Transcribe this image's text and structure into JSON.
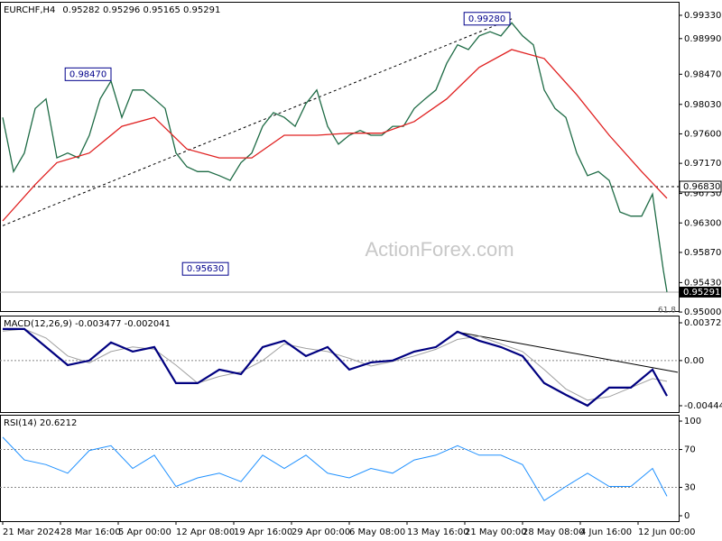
{
  "watermark": "ActionForex.com",
  "chart_data": [
    {
      "type": "line",
      "title": "EURCHF,H4",
      "subtitle": "0.95282 0.95296 0.95165 0.95291",
      "xlim": [
        -1.5,
        374.5
      ],
      "ylim": [
        0.95014,
        0.99527
      ],
      "yticks": [
        {
          "value": 0.9933,
          "label": "0.99330"
        },
        {
          "value": 0.9899,
          "label": "0.98990"
        },
        {
          "value": 0.9847,
          "label": "0.98470"
        },
        {
          "value": 0.9803,
          "label": "0.98030"
        },
        {
          "value": 0.976,
          "label": "0.97600"
        },
        {
          "value": 0.9717,
          "label": "0.97170"
        },
        {
          "value": 0.9673,
          "label": "0.96730"
        },
        {
          "value": 0.963,
          "label": "0.96300"
        },
        {
          "value": 0.9587,
          "label": "0.95870"
        },
        {
          "value": 0.9543,
          "label": "0.95430"
        },
        {
          "value": 0.95,
          "label": "0.95000"
        }
      ],
      "x": [
        0,
        6,
        12,
        18,
        24,
        30,
        36,
        42,
        48,
        54,
        60,
        66,
        72,
        78,
        84,
        90,
        96,
        102,
        108,
        114,
        120,
        126,
        132,
        138,
        144,
        150,
        156,
        162,
        168,
        174,
        180,
        186,
        192,
        198,
        204,
        210,
        216,
        222,
        228,
        234,
        240,
        246,
        252,
        258,
        264,
        270,
        276,
        282,
        288,
        294,
        300,
        306,
        312,
        318,
        324,
        330,
        336,
        342,
        348,
        354,
        360,
        366,
        368
      ],
      "series": [
        {
          "color": "#1e6b45",
          "width": 1.3,
          "values": [
            0.9784,
            0.9705,
            0.9732,
            0.9797,
            0.9811,
            0.9725,
            0.9732,
            0.9725,
            0.9758,
            0.9811,
            0.9837,
            0.9784,
            0.9824,
            0.9824,
            0.9811,
            0.9797,
            0.9732,
            0.9712,
            0.9705,
            0.9705,
            0.9699,
            0.9692,
            0.9718,
            0.9732,
            0.9771,
            0.9791,
            0.9784,
            0.9771,
            0.9804,
            0.9824,
            0.9771,
            0.9745,
            0.9758,
            0.9765,
            0.9758,
            0.9758,
            0.9771,
            0.9771,
            0.9797,
            0.9811,
            0.9824,
            0.9863,
            0.989,
            0.9883,
            0.9903,
            0.9909,
            0.9903,
            0.9922,
            0.9903,
            0.989,
            0.9824,
            0.9797,
            0.9784,
            0.9732,
            0.9699,
            0.9705,
            0.9692,
            0.9646,
            0.964,
            0.964,
            0.9672,
            0.9561,
            0.95291
          ]
        },
        {
          "color": "#e02020",
          "width": 1.3,
          "x": [
            0,
            18,
            30,
            48,
            66,
            84,
            102,
            120,
            138,
            156,
            174,
            192,
            210,
            228,
            246,
            264,
            282,
            300,
            318,
            336,
            354,
            368
          ],
          "values": [
            0.9633,
            0.9686,
            0.9718,
            0.9732,
            0.9771,
            0.9784,
            0.9738,
            0.9725,
            0.9725,
            0.9758,
            0.9758,
            0.9761,
            0.9761,
            0.9778,
            0.9811,
            0.9857,
            0.9883,
            0.987,
            0.9817,
            0.9758,
            0.9705,
            0.9666
          ]
        }
      ],
      "hlines": [
        {
          "value": 0.9683,
          "label": "0.96830"
        }
      ],
      "last_price": {
        "value": 0.95291,
        "label": "0.95291"
      },
      "trendlines": [
        {
          "x": [
            0,
            283
          ],
          "y": [
            0.9626,
            0.9929
          ],
          "dashed": true
        }
      ],
      "annotations": [
        {
          "x": 60,
          "value": 0.9847,
          "label": "0.98470"
        },
        {
          "x": 281,
          "value": 0.9928,
          "label": "0.99280"
        },
        {
          "x": 125,
          "value": 0.9563,
          "label": "0.95630"
        },
        {
          "x": 368,
          "value": 0.9503,
          "label": "61.8"
        }
      ]
    },
    {
      "type": "line",
      "title": "MACD(12,26,9) -0.003477 -0.002041",
      "xlim": [
        -1.5,
        374.5
      ],
      "ylim": [
        -0.00507,
        0.00443
      ],
      "yticks": [
        {
          "value": 0.00372,
          "label": "0.00372"
        },
        {
          "value": 0,
          "label": "0.00"
        },
        {
          "value": -0.004447,
          "label": "-0.004447"
        }
      ],
      "levels": [
        0
      ],
      "x": [
        0,
        12,
        24,
        36,
        48,
        60,
        72,
        84,
        96,
        108,
        120,
        132,
        144,
        156,
        168,
        180,
        192,
        204,
        216,
        228,
        240,
        252,
        264,
        276,
        288,
        300,
        312,
        324,
        336,
        348,
        360,
        368
      ],
      "series": [
        {
          "color": "#a0a0a0",
          "width": 1,
          "values": [
            0.0029,
            0.00311,
            0.00222,
            0.00045,
            -0.00022,
            0.00089,
            0.00134,
            0.00111,
            -0.00045,
            -0.00222,
            -0.00156,
            -0.00111,
            0,
            0.00164,
            0.0012,
            0.00089,
            0.00022,
            -0.00054,
            -9e-05,
            0.00045,
            0.00111,
            0.00209,
            0.0024,
            0.00164,
            0.00089,
            -0.00089,
            -0.0028,
            -0.0039,
            -0.00355,
            -0.00266,
            -0.00178,
            -0.002041
          ]
        },
        {
          "color": "#000080",
          "width": 2.2,
          "values": [
            0.00311,
            0.00311,
            0.00133,
            -0.00044,
            0,
            0.00178,
            0.00089,
            0.00133,
            -0.00222,
            -0.00222,
            -0.00089,
            -0.00133,
            0.00133,
            0.00195,
            0.00044,
            0.00133,
            -0.00089,
            -0.00018,
            0,
            0.00089,
            0.00133,
            0.00284,
            0.00195,
            0.00133,
            0.00044,
            -0.00222,
            -0.00337,
            -0.00444,
            -0.00266,
            -0.00266,
            -0.00089,
            -0.003477
          ]
        }
      ],
      "trendlines": [
        {
          "x": [
            251,
            374
          ],
          "y": [
            0.00284,
            -0.00115
          ],
          "dashed": false
        }
      ]
    },
    {
      "type": "line",
      "title": "RSI(14) 20.6212",
      "xlim": [
        -1.5,
        374.5
      ],
      "ylim": [
        -5.7,
        106.7
      ],
      "yticks": [
        100,
        70,
        30,
        0
      ],
      "levels": [
        70,
        30
      ],
      "x": [
        0,
        12,
        24,
        36,
        48,
        60,
        72,
        84,
        96,
        108,
        120,
        132,
        144,
        156,
        168,
        180,
        192,
        204,
        216,
        228,
        240,
        252,
        264,
        276,
        288,
        300,
        312,
        324,
        336,
        348,
        360,
        368
      ],
      "series": [
        {
          "color": "#1e90ff",
          "width": 1,
          "values": [
            83,
            59,
            54,
            45,
            69,
            74,
            50,
            64,
            31,
            40,
            45,
            36,
            64,
            50,
            64,
            45,
            40,
            50,
            45,
            59,
            64,
            74,
            64,
            64,
            54,
            16,
            31,
            45,
            31,
            31,
            50,
            20.6212
          ]
        }
      ],
      "xticks": [
        {
          "value": 0,
          "label": "21 Mar 2024"
        },
        {
          "value": 32,
          "label": "28 Mar 16:00"
        },
        {
          "value": 64,
          "label": "5 Apr 00:00"
        },
        {
          "value": 96,
          "label": "12 Apr 08:00"
        },
        {
          "value": 128,
          "label": "19 Apr 16:00"
        },
        {
          "value": 160,
          "label": "29 Apr 00:00"
        },
        {
          "value": 192,
          "label": "6 May 08:00"
        },
        {
          "value": 224,
          "label": "13 May 16:00"
        },
        {
          "value": 256,
          "label": "21 May 00:00"
        },
        {
          "value": 288,
          "label": "28 May 08:00"
        },
        {
          "value": 320,
          "label": "4 Jun 16:00"
        },
        {
          "value": 352,
          "label": "12 Jun 00:00"
        }
      ]
    }
  ]
}
